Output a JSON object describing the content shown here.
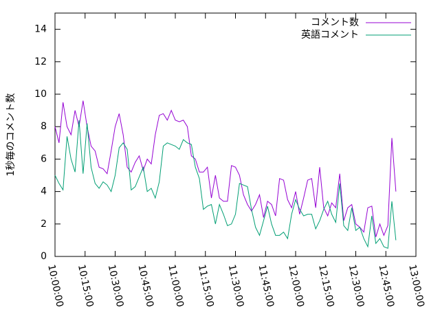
{
  "chart_data": {
    "type": "line",
    "y_label": "1秒毎のコメント数",
    "x": [
      36000,
      36120,
      36240,
      36360,
      36480,
      36600,
      36720,
      36840,
      36960,
      37080,
      37200,
      37320,
      37440,
      37560,
      37680,
      37800,
      37920,
      38040,
      38160,
      38280,
      38400,
      38520,
      38640,
      38760,
      38880,
      39000,
      39120,
      39240,
      39360,
      39480,
      39600,
      39720,
      39840,
      39960,
      40080,
      40200,
      40320,
      40440,
      40560,
      40680,
      40800,
      40920,
      41040,
      41160,
      41280,
      41400,
      41520,
      41640,
      41760,
      41880,
      42000,
      42120,
      42240,
      42360,
      42480,
      42600,
      42720,
      42840,
      42960,
      43080,
      43200,
      43320,
      43440,
      43560,
      43680,
      43800,
      43920,
      44040,
      44160,
      44280,
      44400,
      44520,
      44640,
      44760,
      44880,
      45000,
      45120,
      45240,
      45360,
      45480,
      45600,
      45720,
      45840,
      45960,
      46080,
      46200
    ],
    "series": [
      {
        "name": "コメント数",
        "color": "#9400d3",
        "values": [
          8.0,
          7.0,
          9.5,
          8.0,
          7.5,
          9.0,
          8.0,
          9.6,
          8.0,
          6.8,
          6.5,
          5.5,
          5.4,
          5.1,
          6.5,
          8.0,
          8.8,
          7.5,
          5.5,
          5.2,
          5.8,
          6.2,
          5.3,
          6.0,
          5.7,
          7.5,
          8.7,
          8.8,
          8.4,
          9.0,
          8.4,
          8.3,
          8.4,
          8.0,
          6.2,
          6.0,
          5.2,
          5.2,
          5.5,
          3.6,
          5.0,
          3.6,
          3.4,
          3.4,
          5.6,
          5.5,
          5.0,
          3.8,
          3.2,
          2.8,
          3.2,
          3.8,
          2.4,
          3.4,
          3.2,
          2.5,
          4.8,
          4.7,
          3.5,
          3.0,
          4.0,
          2.6,
          3.6,
          4.7,
          4.8,
          3.0,
          5.5,
          3.0,
          2.5,
          3.3,
          3.0,
          5.1,
          2.2,
          3.0,
          3.2,
          2.0,
          1.8,
          1.5,
          3.0,
          3.1,
          1.2,
          2.0,
          1.3,
          1.9,
          7.3,
          4.0
        ]
      },
      {
        "name": "英語コメント",
        "color": "#009e73",
        "values": [
          5.0,
          4.5,
          4.1,
          7.4,
          6.0,
          5.2,
          8.4,
          5.1,
          8.2,
          5.5,
          4.5,
          4.2,
          4.6,
          4.4,
          4.0,
          5.0,
          6.7,
          7.0,
          6.6,
          4.1,
          4.3,
          4.9,
          5.5,
          4.0,
          4.2,
          3.6,
          4.6,
          6.8,
          7.0,
          6.9,
          6.8,
          6.6,
          7.2,
          7.0,
          6.9,
          5.5,
          4.8,
          2.9,
          3.1,
          3.2,
          2.0,
          3.2,
          2.6,
          1.9,
          2.0,
          2.6,
          4.5,
          4.4,
          4.3,
          2.9,
          1.8,
          1.3,
          2.2,
          3.1,
          2.0,
          1.3,
          1.3,
          1.5,
          1.1,
          2.6,
          3.5,
          2.9,
          2.5,
          2.6,
          2.6,
          1.7,
          2.2,
          2.9,
          3.4,
          2.6,
          2.1,
          4.5,
          1.9,
          1.6,
          3.0,
          1.6,
          1.8,
          1.1,
          0.6,
          2.5,
          0.8,
          1.1,
          0.6,
          0.5,
          3.4,
          1.0
        ]
      }
    ],
    "xlim": [
      36000,
      46800
    ],
    "xticks": [
      {
        "value": 36000,
        "label": "10:00:00"
      },
      {
        "value": 36900,
        "label": "10:15:00"
      },
      {
        "value": 37800,
        "label": "10:30:00"
      },
      {
        "value": 38700,
        "label": "10:45:00"
      },
      {
        "value": 39600,
        "label": "11:00:00"
      },
      {
        "value": 40500,
        "label": "11:15:00"
      },
      {
        "value": 41400,
        "label": "11:30:00"
      },
      {
        "value": 42300,
        "label": "11:45:00"
      },
      {
        "value": 43200,
        "label": "12:00:00"
      },
      {
        "value": 44100,
        "label": "12:15:00"
      },
      {
        "value": 45000,
        "label": "12:30:00"
      },
      {
        "value": 45900,
        "label": "12:45:00"
      },
      {
        "value": 46800,
        "label": "13:00:00"
      }
    ],
    "ylim": [
      0,
      15
    ],
    "yticks": [
      0,
      2,
      4,
      6,
      8,
      10,
      12,
      14
    ],
    "legend": "top-right"
  }
}
